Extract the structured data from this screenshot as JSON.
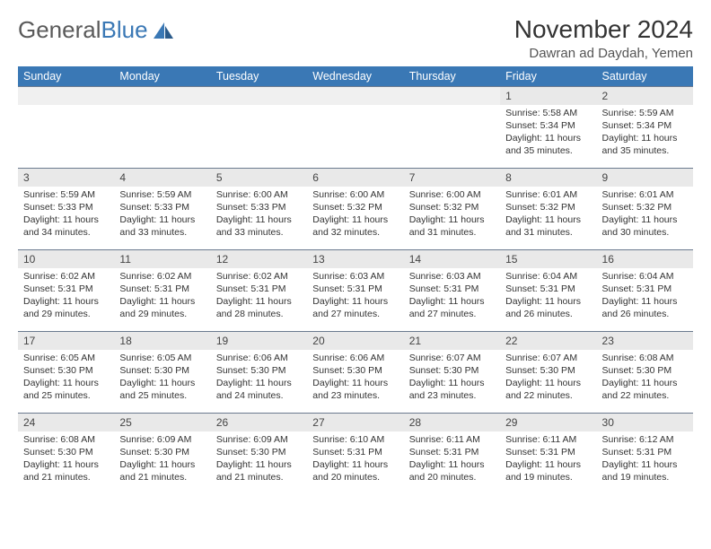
{
  "brand": {
    "part1": "General",
    "part2": "Blue"
  },
  "title": "November 2024",
  "location": "Dawran ad Daydah, Yemen",
  "colors": {
    "header_bg": "#3a78b5",
    "header_text": "#ffffff",
    "date_row_bg": "#e9e9e9",
    "spacer_bg": "#f0f0f0",
    "border": "#6b7a8f",
    "text": "#333333"
  },
  "day_names": [
    "Sunday",
    "Monday",
    "Tuesday",
    "Wednesday",
    "Thursday",
    "Friday",
    "Saturday"
  ],
  "weeks": [
    {
      "dates": [
        "",
        "",
        "",
        "",
        "",
        "1",
        "2"
      ],
      "cells": [
        null,
        null,
        null,
        null,
        null,
        {
          "sunrise": "Sunrise: 5:58 AM",
          "sunset": "Sunset: 5:34 PM",
          "daylight": "Daylight: 11 hours and 35 minutes."
        },
        {
          "sunrise": "Sunrise: 5:59 AM",
          "sunset": "Sunset: 5:34 PM",
          "daylight": "Daylight: 11 hours and 35 minutes."
        }
      ]
    },
    {
      "dates": [
        "3",
        "4",
        "5",
        "6",
        "7",
        "8",
        "9"
      ],
      "cells": [
        {
          "sunrise": "Sunrise: 5:59 AM",
          "sunset": "Sunset: 5:33 PM",
          "daylight": "Daylight: 11 hours and 34 minutes."
        },
        {
          "sunrise": "Sunrise: 5:59 AM",
          "sunset": "Sunset: 5:33 PM",
          "daylight": "Daylight: 11 hours and 33 minutes."
        },
        {
          "sunrise": "Sunrise: 6:00 AM",
          "sunset": "Sunset: 5:33 PM",
          "daylight": "Daylight: 11 hours and 33 minutes."
        },
        {
          "sunrise": "Sunrise: 6:00 AM",
          "sunset": "Sunset: 5:32 PM",
          "daylight": "Daylight: 11 hours and 32 minutes."
        },
        {
          "sunrise": "Sunrise: 6:00 AM",
          "sunset": "Sunset: 5:32 PM",
          "daylight": "Daylight: 11 hours and 31 minutes."
        },
        {
          "sunrise": "Sunrise: 6:01 AM",
          "sunset": "Sunset: 5:32 PM",
          "daylight": "Daylight: 11 hours and 31 minutes."
        },
        {
          "sunrise": "Sunrise: 6:01 AM",
          "sunset": "Sunset: 5:32 PM",
          "daylight": "Daylight: 11 hours and 30 minutes."
        }
      ]
    },
    {
      "dates": [
        "10",
        "11",
        "12",
        "13",
        "14",
        "15",
        "16"
      ],
      "cells": [
        {
          "sunrise": "Sunrise: 6:02 AM",
          "sunset": "Sunset: 5:31 PM",
          "daylight": "Daylight: 11 hours and 29 minutes."
        },
        {
          "sunrise": "Sunrise: 6:02 AM",
          "sunset": "Sunset: 5:31 PM",
          "daylight": "Daylight: 11 hours and 29 minutes."
        },
        {
          "sunrise": "Sunrise: 6:02 AM",
          "sunset": "Sunset: 5:31 PM",
          "daylight": "Daylight: 11 hours and 28 minutes."
        },
        {
          "sunrise": "Sunrise: 6:03 AM",
          "sunset": "Sunset: 5:31 PM",
          "daylight": "Daylight: 11 hours and 27 minutes."
        },
        {
          "sunrise": "Sunrise: 6:03 AM",
          "sunset": "Sunset: 5:31 PM",
          "daylight": "Daylight: 11 hours and 27 minutes."
        },
        {
          "sunrise": "Sunrise: 6:04 AM",
          "sunset": "Sunset: 5:31 PM",
          "daylight": "Daylight: 11 hours and 26 minutes."
        },
        {
          "sunrise": "Sunrise: 6:04 AM",
          "sunset": "Sunset: 5:31 PM",
          "daylight": "Daylight: 11 hours and 26 minutes."
        }
      ]
    },
    {
      "dates": [
        "17",
        "18",
        "19",
        "20",
        "21",
        "22",
        "23"
      ],
      "cells": [
        {
          "sunrise": "Sunrise: 6:05 AM",
          "sunset": "Sunset: 5:30 PM",
          "daylight": "Daylight: 11 hours and 25 minutes."
        },
        {
          "sunrise": "Sunrise: 6:05 AM",
          "sunset": "Sunset: 5:30 PM",
          "daylight": "Daylight: 11 hours and 25 minutes."
        },
        {
          "sunrise": "Sunrise: 6:06 AM",
          "sunset": "Sunset: 5:30 PM",
          "daylight": "Daylight: 11 hours and 24 minutes."
        },
        {
          "sunrise": "Sunrise: 6:06 AM",
          "sunset": "Sunset: 5:30 PM",
          "daylight": "Daylight: 11 hours and 23 minutes."
        },
        {
          "sunrise": "Sunrise: 6:07 AM",
          "sunset": "Sunset: 5:30 PM",
          "daylight": "Daylight: 11 hours and 23 minutes."
        },
        {
          "sunrise": "Sunrise: 6:07 AM",
          "sunset": "Sunset: 5:30 PM",
          "daylight": "Daylight: 11 hours and 22 minutes."
        },
        {
          "sunrise": "Sunrise: 6:08 AM",
          "sunset": "Sunset: 5:30 PM",
          "daylight": "Daylight: 11 hours and 22 minutes."
        }
      ]
    },
    {
      "dates": [
        "24",
        "25",
        "26",
        "27",
        "28",
        "29",
        "30"
      ],
      "cells": [
        {
          "sunrise": "Sunrise: 6:08 AM",
          "sunset": "Sunset: 5:30 PM",
          "daylight": "Daylight: 11 hours and 21 minutes."
        },
        {
          "sunrise": "Sunrise: 6:09 AM",
          "sunset": "Sunset: 5:30 PM",
          "daylight": "Daylight: 11 hours and 21 minutes."
        },
        {
          "sunrise": "Sunrise: 6:09 AM",
          "sunset": "Sunset: 5:30 PM",
          "daylight": "Daylight: 11 hours and 21 minutes."
        },
        {
          "sunrise": "Sunrise: 6:10 AM",
          "sunset": "Sunset: 5:31 PM",
          "daylight": "Daylight: 11 hours and 20 minutes."
        },
        {
          "sunrise": "Sunrise: 6:11 AM",
          "sunset": "Sunset: 5:31 PM",
          "daylight": "Daylight: 11 hours and 20 minutes."
        },
        {
          "sunrise": "Sunrise: 6:11 AM",
          "sunset": "Sunset: 5:31 PM",
          "daylight": "Daylight: 11 hours and 19 minutes."
        },
        {
          "sunrise": "Sunrise: 6:12 AM",
          "sunset": "Sunset: 5:31 PM",
          "daylight": "Daylight: 11 hours and 19 minutes."
        }
      ]
    }
  ]
}
